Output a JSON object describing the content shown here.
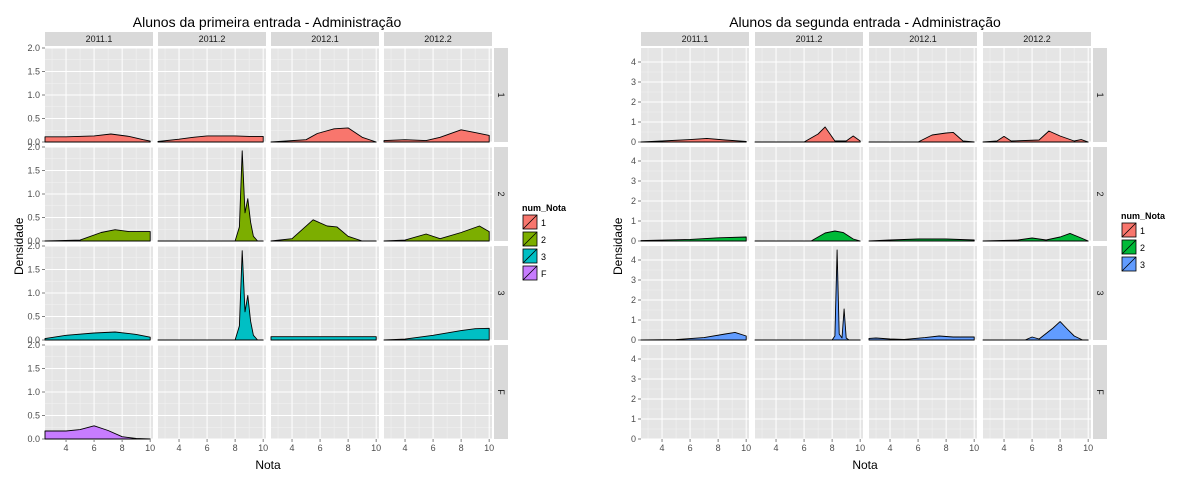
{
  "chart_data": [
    {
      "type": "area",
      "title": "Alunos da primeira entrada -  Administração",
      "xlabel": "Nota",
      "ylabel": "Densidade",
      "col_facets": [
        "2011.1",
        "2011.2",
        "2012.1",
        "2012.2"
      ],
      "row_facets": [
        "1",
        "2",
        "3",
        "F"
      ],
      "xlim": [
        2.5,
        10.2
      ],
      "ylim": [
        0,
        2.0
      ],
      "xticks": [
        "4",
        "6",
        "8",
        "10"
      ],
      "yticks": [
        "0.0",
        "0.5",
        "1.0",
        "1.5",
        "2.0"
      ],
      "legend": {
        "title": "num_Nota",
        "entries": [
          "1",
          "2",
          "3",
          "F"
        ],
        "position": "right"
      },
      "colors": {
        "1": "#F8766D",
        "2": "#7CAE00",
        "3": "#00BFC4",
        "F": "#C77CFF"
      },
      "panels": {
        "1": {
          "2011.1": {
            "x": [
              2.5,
              4,
              6,
              7.2,
              8.5,
              9.5,
              10
            ],
            "y": [
              0.11,
              0.11,
              0.13,
              0.17,
              0.12,
              0.05,
              0.02
            ]
          },
          "2011.2": {
            "x": [
              2.5,
              4,
              5,
              6,
              8,
              9,
              10
            ],
            "y": [
              0.01,
              0.06,
              0.1,
              0.13,
              0.13,
              0.12,
              0.12
            ]
          },
          "2012.1": {
            "x": [
              2.5,
              5,
              5.8,
              7,
              8,
              9,
              10
            ],
            "y": [
              0.0,
              0.05,
              0.18,
              0.28,
              0.3,
              0.1,
              0.0
            ]
          },
          "2012.2": {
            "x": [
              2.5,
              4,
              5.5,
              6.5,
              8,
              9,
              10
            ],
            "y": [
              0.03,
              0.05,
              0.03,
              0.1,
              0.26,
              0.2,
              0.14
            ]
          }
        },
        "2": {
          "2011.1": {
            "x": [
              2.5,
              5,
              6.5,
              7.5,
              8.5,
              10
            ],
            "y": [
              0.0,
              0.02,
              0.18,
              0.24,
              0.2,
              0.2
            ]
          },
          "2011.2": {
            "x": [
              2.5,
              8.0,
              8.3,
              8.5,
              8.7,
              8.9,
              9.1,
              9.3,
              9.6,
              10
            ],
            "y": [
              0.0,
              0.0,
              0.3,
              1.92,
              0.6,
              0.9,
              0.4,
              0.1,
              0.0,
              0.0
            ]
          },
          "2012.1": {
            "x": [
              2.5,
              4,
              5.5,
              6.5,
              7.2,
              8,
              9,
              10
            ],
            "y": [
              0.0,
              0.05,
              0.45,
              0.32,
              0.3,
              0.1,
              0.0,
              0.0
            ]
          },
          "2012.2": {
            "x": [
              2.5,
              4,
              5.5,
              6.5,
              8,
              9.3,
              10
            ],
            "y": [
              0.0,
              0.02,
              0.15,
              0.05,
              0.18,
              0.32,
              0.2
            ]
          }
        },
        "3": {
          "2011.1": {
            "x": [
              2.5,
              4,
              6,
              7.5,
              9,
              10
            ],
            "y": [
              0.03,
              0.1,
              0.15,
              0.17,
              0.12,
              0.06
            ]
          },
          "2011.2": {
            "x": [
              2.5,
              8.0,
              8.3,
              8.5,
              8.7,
              8.9,
              9.1,
              9.3,
              9.6,
              10
            ],
            "y": [
              0.0,
              0.0,
              0.3,
              1.9,
              0.6,
              0.95,
              0.4,
              0.1,
              0.0,
              0.0
            ]
          },
          "2012.1": {
            "x": [
              2.5,
              4,
              6,
              8,
              10
            ],
            "y": [
              0.07,
              0.07,
              0.07,
              0.07,
              0.07
            ]
          },
          "2012.2": {
            "x": [
              2.5,
              4,
              6,
              8,
              9,
              10
            ],
            "y": [
              0.0,
              0.02,
              0.1,
              0.2,
              0.24,
              0.25
            ]
          }
        },
        "F": {
          "2011.1": {
            "x": [
              2.5,
              4,
              5,
              6,
              7,
              8,
              9,
              10
            ],
            "y": [
              0.17,
              0.17,
              0.2,
              0.28,
              0.18,
              0.05,
              0.01,
              0.0
            ]
          },
          "2011.2": {
            "x": [],
            "y": []
          },
          "2012.1": {
            "x": [],
            "y": []
          },
          "2012.2": {
            "x": [],
            "y": []
          }
        }
      }
    },
    {
      "type": "area",
      "title": "Alunos da segunda entrada -  Administração",
      "xlabel": "Nota",
      "ylabel": "Densidade",
      "col_facets": [
        "2011.1",
        "2011.2",
        "2012.1",
        "2012.2"
      ],
      "row_facets": [
        "1",
        "2",
        "3",
        "F"
      ],
      "xlim": [
        2.5,
        10.2
      ],
      "ylim": [
        0,
        4.7
      ],
      "xticks": [
        "4",
        "6",
        "8",
        "10"
      ],
      "yticks": [
        "0",
        "1",
        "2",
        "3",
        "4"
      ],
      "legend": {
        "title": "num_Nota",
        "entries": [
          "1",
          "2",
          "3"
        ],
        "position": "right"
      },
      "colors": {
        "1": "#F8766D",
        "2": "#00BA38",
        "3": "#619CFF"
      },
      "panels": {
        "1": {
          "2011.1": {
            "x": [
              2.5,
              4,
              6,
              7.2,
              8.5,
              10
            ],
            "y": [
              0.0,
              0.05,
              0.12,
              0.18,
              0.1,
              0.03
            ]
          },
          "2011.2": {
            "x": [
              2.5,
              6,
              7,
              7.5,
              8.2,
              9,
              9.5,
              10
            ],
            "y": [
              0.0,
              0.0,
              0.4,
              0.75,
              0.05,
              0.05,
              0.3,
              0.05
            ]
          },
          "2012.1": {
            "x": [
              2.5,
              6,
              7,
              8,
              8.5,
              9.2,
              10
            ],
            "y": [
              0.0,
              0.0,
              0.35,
              0.45,
              0.48,
              0.05,
              0.0
            ]
          },
          "2012.2": {
            "x": [
              2.5,
              3.5,
              4,
              4.5,
              6.5,
              7.2,
              8,
              9,
              9.5,
              10
            ],
            "y": [
              0.0,
              0.05,
              0.28,
              0.05,
              0.1,
              0.55,
              0.3,
              0.05,
              0.12,
              0.0
            ]
          }
        },
        "2": {
          "2011.1": {
            "x": [
              2.5,
              6,
              8,
              10
            ],
            "y": [
              0.02,
              0.08,
              0.16,
              0.2
            ]
          },
          "2011.2": {
            "x": [
              2.5,
              6.5,
              7.5,
              8.2,
              8.8,
              9.5,
              10
            ],
            "y": [
              0.0,
              0.0,
              0.4,
              0.5,
              0.42,
              0.1,
              0.0
            ]
          },
          "2012.1": {
            "x": [
              2.5,
              4,
              6,
              8,
              10
            ],
            "y": [
              0.0,
              0.05,
              0.1,
              0.1,
              0.05
            ]
          },
          "2012.2": {
            "x": [
              2.5,
              5,
              6,
              7,
              8,
              8.7,
              9.5,
              10
            ],
            "y": [
              0.0,
              0.05,
              0.15,
              0.05,
              0.2,
              0.38,
              0.15,
              0.0
            ]
          }
        },
        "3": {
          "2011.1": {
            "x": [
              2.5,
              5,
              7,
              8.5,
              9.2,
              10
            ],
            "y": [
              0.0,
              0.02,
              0.12,
              0.3,
              0.38,
              0.2
            ]
          },
          "2011.2": {
            "x": [
              2.5,
              8.0,
              8.2,
              8.35,
              8.5,
              8.7,
              8.85,
              9.0,
              9.2,
              10
            ],
            "y": [
              0.0,
              0.0,
              0.2,
              4.5,
              0.3,
              0.1,
              1.55,
              0.1,
              0.0,
              0.0
            ]
          },
          "2012.1": {
            "x": [
              2.5,
              3,
              4,
              5,
              6.5,
              7.5,
              8.5,
              10
            ],
            "y": [
              0.08,
              0.1,
              0.05,
              0.03,
              0.12,
              0.2,
              0.15,
              0.15
            ]
          },
          "2012.2": {
            "x": [
              2.5,
              5.5,
              6,
              6.5,
              7.5,
              8,
              8.5,
              9,
              9.6,
              10
            ],
            "y": [
              0.0,
              0.0,
              0.15,
              0.05,
              0.6,
              0.92,
              0.55,
              0.2,
              0.0,
              0.0
            ]
          }
        },
        "F": {
          "2011.1": {
            "x": [],
            "y": []
          },
          "2011.2": {
            "x": [],
            "y": []
          },
          "2012.1": {
            "x": [],
            "y": []
          },
          "2012.2": {
            "x": [],
            "y": []
          }
        }
      }
    }
  ]
}
